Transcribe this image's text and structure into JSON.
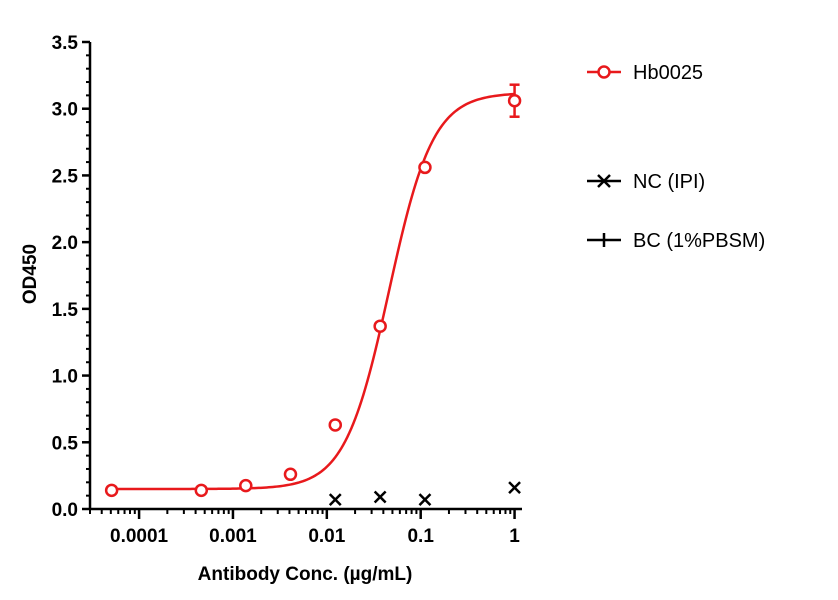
{
  "chart_data": {
    "type": "scatter",
    "title": "",
    "xlabel": "Antibody Conc. (µg/mL)",
    "ylabel": "OD450",
    "x_scale": "log",
    "xlim": [
      3e-05,
      1.2
    ],
    "ylim": [
      0,
      3.5
    ],
    "x_ticks": [
      {
        "value": 0.0001,
        "label": "0.0001"
      },
      {
        "value": 0.001,
        "label": "0.001"
      },
      {
        "value": 0.01,
        "label": "0.01"
      },
      {
        "value": 0.1,
        "label": "0.1"
      },
      {
        "value": 1,
        "label": "1"
      }
    ],
    "y_ticks": [
      {
        "value": 0,
        "label": "0.0"
      },
      {
        "value": 0.5,
        "label": "0.5"
      },
      {
        "value": 1.0,
        "label": "1.0"
      },
      {
        "value": 1.5,
        "label": "1.5"
      },
      {
        "value": 2.0,
        "label": "2.0"
      },
      {
        "value": 2.5,
        "label": "2.5"
      },
      {
        "value": 3.0,
        "label": "3.0"
      },
      {
        "value": 3.5,
        "label": "3.5"
      }
    ],
    "grid": false,
    "legend_position": "right",
    "series": [
      {
        "name": "Hb0025",
        "marker": "open-circle",
        "color": "#e8191c",
        "fit": "4PL",
        "fit_params": {
          "bottom": 0.15,
          "top": 3.12,
          "ec50": 0.046,
          "hill": 1.85
        },
        "points": [
          {
            "x": 5.1e-05,
            "y": 0.14
          },
          {
            "x": 0.00046,
            "y": 0.14
          },
          {
            "x": 0.00137,
            "y": 0.175
          },
          {
            "x": 0.0041,
            "y": 0.26
          },
          {
            "x": 0.0123,
            "y": 0.63
          },
          {
            "x": 0.037,
            "y": 1.37
          },
          {
            "x": 0.111,
            "y": 2.56
          },
          {
            "x": 1.0,
            "y": 3.06,
            "err": 0.12
          }
        ]
      },
      {
        "name": "NC (IPI)",
        "marker": "x",
        "color": "#000000",
        "points": [
          {
            "x": 0.0123,
            "y": 0.07
          },
          {
            "x": 0.037,
            "y": 0.09
          },
          {
            "x": 0.111,
            "y": 0.07
          },
          {
            "x": 1.0,
            "y": 0.16
          }
        ]
      },
      {
        "name": "BC (1%PBSM)",
        "marker": "plus",
        "color": "#000000",
        "points": []
      }
    ]
  }
}
